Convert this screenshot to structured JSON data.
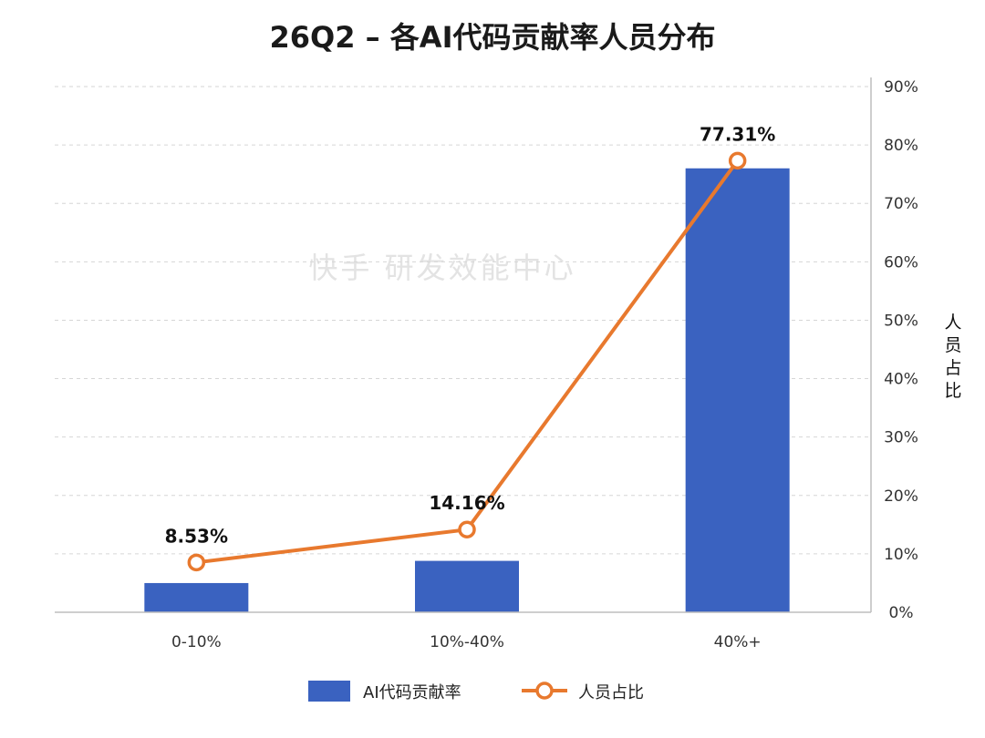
{
  "watermark": "快手 研发效能中心",
  "chart_data": {
    "type": "bar",
    "title": "26Q2 – 各AI代码贡献率人员分布",
    "categories": [
      "0-10%",
      "10%-40%",
      "40%+"
    ],
    "series": [
      {
        "name": "AI代码贡献率",
        "type": "bar",
        "color": "#3a62c0",
        "values": [
          5,
          8.8,
          76
        ]
      },
      {
        "name": "人员占比",
        "type": "line",
        "color": "#e8792e",
        "values": [
          8.53,
          14.16,
          77.31
        ],
        "labels": [
          "8.53%",
          "14.16%",
          "77.31%"
        ]
      }
    ],
    "y_axis": {
      "side": "right",
      "label": "人员占比",
      "ylim": [
        0,
        90
      ],
      "ticks": [
        0,
        10,
        20,
        30,
        40,
        50,
        60,
        70,
        80,
        90
      ],
      "tick_labels": [
        "0%",
        "10%",
        "20%",
        "30%",
        "40%",
        "50%",
        "60%",
        "70%",
        "80%",
        "90%"
      ]
    },
    "grid": true,
    "legend": "bottom"
  }
}
